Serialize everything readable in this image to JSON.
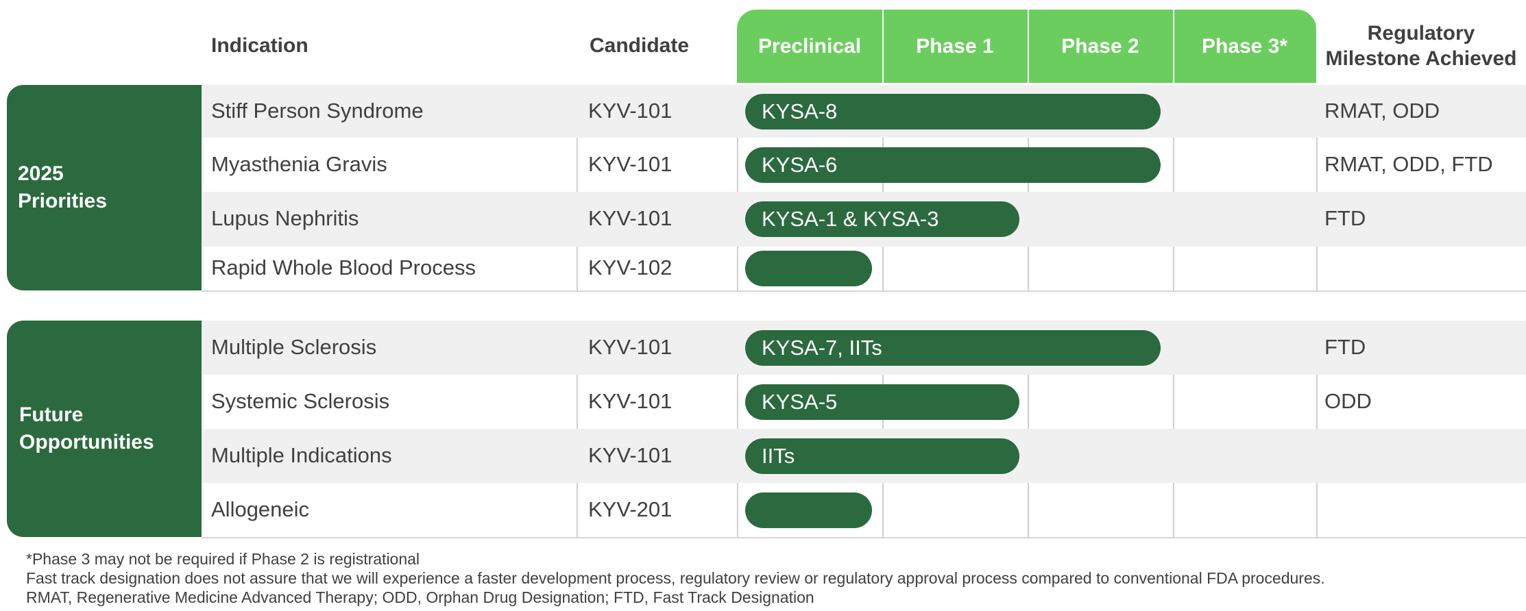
{
  "headers": {
    "indication": "Indication",
    "candidate": "Candidate",
    "phases": [
      "Preclinical",
      "Phase 1",
      "Phase 2",
      "Phase 3*"
    ],
    "regulatory_line1": "Regulatory",
    "regulatory_line2": "Milestone Achieved"
  },
  "groups": [
    {
      "label_line1": "2025",
      "label_line2": "Priorities"
    },
    {
      "label_line1": "Future",
      "label_line2": "Opportunities"
    }
  ],
  "chart_data": {
    "type": "table",
    "stages": [
      "Preclinical",
      "Phase 1",
      "Phase 2",
      "Phase 3*"
    ],
    "rows": [
      {
        "group": "2025 Priorities",
        "indication": "Stiff Person Syndrome",
        "candidate": "KYV-101",
        "bar_label": "KYSA-8",
        "progress_stage": "Phase 2",
        "regulatory": "RMAT, ODD"
      },
      {
        "group": "2025 Priorities",
        "indication": "Myasthenia Gravis",
        "candidate": "KYV-101",
        "bar_label": "KYSA-6",
        "progress_stage": "Phase 2",
        "regulatory": "RMAT, ODD, FTD"
      },
      {
        "group": "2025 Priorities",
        "indication": "Lupus Nephritis",
        "candidate": "KYV-101",
        "bar_label": "KYSA-1 & KYSA-3",
        "progress_stage": "Phase 1",
        "regulatory": "FTD"
      },
      {
        "group": "2025 Priorities",
        "indication": "Rapid Whole Blood Process",
        "candidate": "KYV-102",
        "bar_label": "",
        "progress_stage": "Preclinical",
        "regulatory": ""
      },
      {
        "group": "Future Opportunities",
        "indication": "Multiple Sclerosis",
        "candidate": "KYV-101",
        "bar_label": "KYSA-7, IITs",
        "progress_stage": "Phase 2",
        "regulatory": "FTD"
      },
      {
        "group": "Future Opportunities",
        "indication": "Systemic Sclerosis",
        "candidate": "KYV-101",
        "bar_label": "KYSA-5",
        "progress_stage": "Phase 1",
        "regulatory": "ODD"
      },
      {
        "group": "Future Opportunities",
        "indication": "Multiple Indications",
        "candidate": "KYV-101",
        "bar_label": "IITs",
        "progress_stage": "Phase 1",
        "regulatory": ""
      },
      {
        "group": "Future Opportunities",
        "indication": "Allogeneic",
        "candidate": "KYV-201",
        "bar_label": "",
        "progress_stage": "Preclinical",
        "regulatory": ""
      }
    ]
  },
  "colors": {
    "dark_green": "#2b6a3e",
    "light_green": "#6ccd5f",
    "row_shade": "#f0f0f0"
  },
  "footnotes": [
    "*Phase 3 may not be required if Phase 2 is registrational",
    "Fast track designation does not assure that we will experience a faster development process, regulatory review or regulatory approval process compared to conventional FDA procedures.",
    "RMAT, Regenerative Medicine Advanced Therapy; ODD, Orphan Drug Designation; FTD, Fast Track Designation"
  ]
}
